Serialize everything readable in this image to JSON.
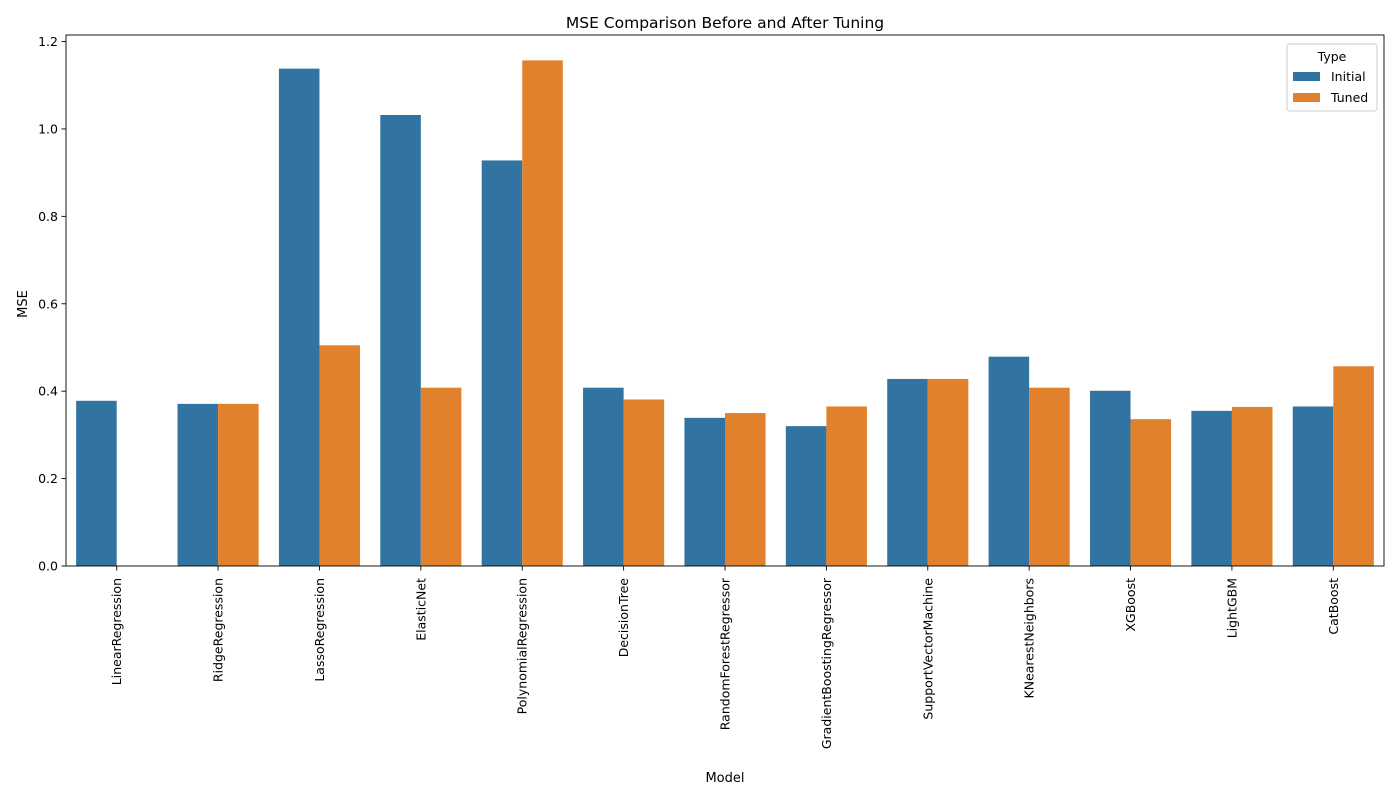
{
  "chart_data": {
    "type": "bar",
    "title": "MSE Comparison Before and After Tuning",
    "xlabel": "Model",
    "ylabel": "MSE",
    "categories": [
      "LinearRegression",
      "RidgeRegression",
      "LassoRegression",
      "ElasticNet",
      "PolynomialRegression",
      "DecisionTree",
      "RandomForestRegressor",
      "GradientBoostingRegressor",
      "SupportVectorMachine",
      "KNearestNeighbors",
      "XGBoost",
      "LightGBM",
      "CatBoost"
    ],
    "series": [
      {
        "name": "Initial",
        "color": "#3274a1",
        "values": [
          0.378,
          0.371,
          1.138,
          1.032,
          0.928,
          0.408,
          0.339,
          0.32,
          0.428,
          0.479,
          0.401,
          0.355,
          0.365
        ]
      },
      {
        "name": "Tuned",
        "color": "#e1812c",
        "values": [
          0.0,
          0.371,
          0.505,
          0.408,
          1.157,
          0.381,
          0.35,
          0.365,
          0.428,
          0.408,
          0.336,
          0.364,
          0.457
        ]
      }
    ],
    "ylim": [
      0,
      1.215
    ],
    "yticks": [
      "0.0",
      "0.2",
      "0.4",
      "0.6",
      "0.8",
      "1.0",
      "1.2"
    ],
    "grid": false,
    "legend": {
      "title": "Type",
      "placement": "top-right"
    }
  }
}
